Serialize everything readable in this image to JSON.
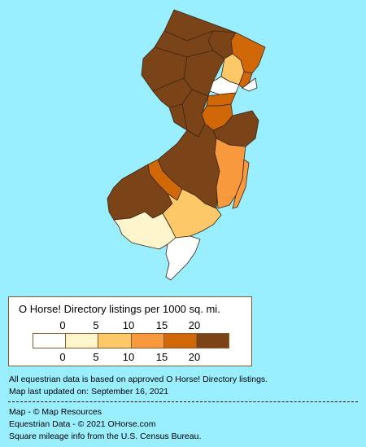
{
  "legend": {
    "title": "O Horse! Directory listings per 1000 sq. mi.",
    "ticks_top": [
      "0",
      "5",
      "10",
      "15",
      "20"
    ],
    "ticks_bottom": [
      "0",
      "5",
      "10",
      "15",
      "20"
    ],
    "colors": [
      "#ffffff",
      "#fff5cc",
      "#fcc868",
      "#f7993c",
      "#d06808",
      "#7a4418"
    ]
  },
  "notes": {
    "data_basis": "All equestrian data is based on approved O Horse! Directory listings.",
    "updated": "Map last updated on: September 16, 2021"
  },
  "credits": {
    "map": "Map - © Map Resources",
    "equestrian": "Equestrian Data - © 2021 OHorse.com",
    "mileage": "Square mileage info from the U.S. Census Bureau."
  },
  "map": {
    "state": "New Jersey",
    "fill_colors": {
      "darkest": "#7a4418",
      "dark_orange": "#d06808",
      "orange": "#f7993c",
      "light_orange": "#fcc868",
      "pale": "#fff5cc",
      "white": "#ffffff",
      "border": "#3a2410"
    }
  }
}
